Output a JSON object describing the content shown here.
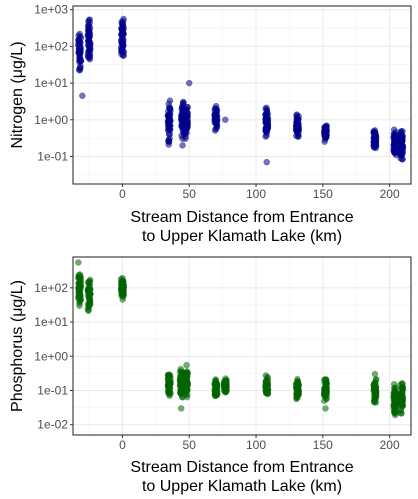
{
  "chart_data": [
    {
      "type": "scatter",
      "xlabel_line1": "Stream Distance from Entrance",
      "xlabel_line2": "to Upper Klamath Lake (km)",
      "ylabel": "Nitrogen (μg/L)",
      "xlim": [
        -37,
        216
      ],
      "ylim_log10": [
        -1.75,
        3.1
      ],
      "y_scale": "log10",
      "xticks": [
        0,
        50,
        100,
        150,
        200
      ],
      "yticks": [
        {
          "exp": -1,
          "label": "1e-01"
        },
        {
          "exp": 0,
          "label": "1e+00"
        },
        {
          "exp": 1,
          "label": "1e+01"
        },
        {
          "exp": 2,
          "label": "1e+02"
        },
        {
          "exp": 3,
          "label": "1e+03"
        }
      ],
      "grid": true,
      "point_color": "#00008b",
      "groups": [
        {
          "x": -32,
          "y_min": 15,
          "y_max": 300
        },
        {
          "x": -25,
          "y_min": 30,
          "y_max": 750
        },
        {
          "x": 0,
          "y_min": 50,
          "y_max": 650
        },
        {
          "x": 35,
          "y_min": 0.15,
          "y_max": 4
        },
        {
          "x": 45,
          "y_min": 0.3,
          "y_max": 4
        },
        {
          "x": 48,
          "y_min": 0.3,
          "y_max": 3
        },
        {
          "x": 70,
          "y_min": 0.45,
          "y_max": 2.5
        },
        {
          "x": 108,
          "y_min": 0.3,
          "y_max": 2.5
        },
        {
          "x": 131,
          "y_min": 0.3,
          "y_max": 1.6
        },
        {
          "x": 152,
          "y_min": 0.25,
          "y_max": 0.8
        },
        {
          "x": 189,
          "y_min": 0.15,
          "y_max": 0.55
        },
        {
          "x": 204,
          "y_min": 0.1,
          "y_max": 0.6
        },
        {
          "x": 209,
          "y_min": 0.07,
          "y_max": 0.6
        }
      ],
      "outliers": [
        [
          -30,
          4.5
        ],
        [
          50,
          10
        ],
        [
          77,
          1
        ],
        [
          108,
          0.07
        ],
        [
          45,
          0.2
        ]
      ]
    },
    {
      "type": "scatter",
      "xlabel_line1": "Stream Distance from Entrance",
      "xlabel_line2": "to Upper Klamath Lake (km)",
      "ylabel": "Phosphorus (μg/L)",
      "xlim": [
        -37,
        216
      ],
      "ylim_log10": [
        -2.3,
        2.9
      ],
      "y_scale": "log10",
      "xticks": [
        0,
        50,
        100,
        150,
        200
      ],
      "yticks": [
        {
          "exp": -2,
          "label": "1e-02"
        },
        {
          "exp": -1,
          "label": "1e-01"
        },
        {
          "exp": 0,
          "label": "1e+00"
        },
        {
          "exp": 1,
          "label": "1e+01"
        },
        {
          "exp": 2,
          "label": "1e+02"
        }
      ],
      "grid": true,
      "point_color": "#006400",
      "groups": [
        {
          "x": -32,
          "y_min": 25,
          "y_max": 350
        },
        {
          "x": -25,
          "y_min": 20,
          "y_max": 200
        },
        {
          "x": 0,
          "y_min": 40,
          "y_max": 220
        },
        {
          "x": 35,
          "y_min": 0.05,
          "y_max": 0.35
        },
        {
          "x": 44,
          "y_min": 0.04,
          "y_max": 0.5
        },
        {
          "x": 48,
          "y_min": 0.05,
          "y_max": 0.4
        },
        {
          "x": 70,
          "y_min": 0.05,
          "y_max": 0.25
        },
        {
          "x": 77,
          "y_min": 0.08,
          "y_max": 0.25
        },
        {
          "x": 108,
          "y_min": 0.06,
          "y_max": 0.3
        },
        {
          "x": 131,
          "y_min": 0.05,
          "y_max": 0.25
        },
        {
          "x": 152,
          "y_min": 0.04,
          "y_max": 0.25
        },
        {
          "x": 189,
          "y_min": 0.04,
          "y_max": 0.25
        },
        {
          "x": 204,
          "y_min": 0.015,
          "y_max": 0.2
        },
        {
          "x": 209,
          "y_min": 0.02,
          "y_max": 0.2
        }
      ],
      "outliers": [
        [
          -33,
          550
        ],
        [
          44,
          0.03
        ],
        [
          48,
          0.55
        ],
        [
          152,
          0.03
        ],
        [
          189,
          0.3
        ]
      ]
    }
  ]
}
